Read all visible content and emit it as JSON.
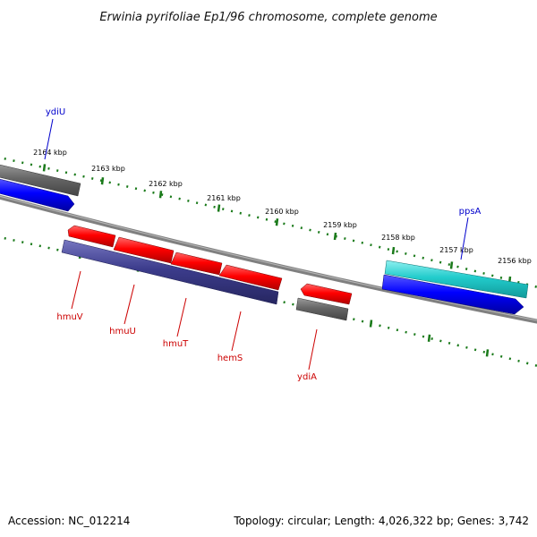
{
  "title": "Erwinia pyrifoliae Ep1/96 chromosome, complete genome",
  "footer": {
    "accession": "Accession: NC_012214",
    "summary": "Topology: circular; Length: 4,026,322 bp; Genes: 3,742"
  },
  "ticks": [
    {
      "label": "2164 kbp"
    },
    {
      "label": "2163 kbp"
    },
    {
      "label": "2162 kbp"
    },
    {
      "label": "2161 kbp"
    },
    {
      "label": "2160 kbp"
    },
    {
      "label": "2159 kbp"
    },
    {
      "label": "2158 kbp"
    },
    {
      "label": "2157 kbp"
    },
    {
      "label": "2156 kbp"
    }
  ],
  "genes": {
    "forward": [
      {
        "name": "ydiU",
        "color": "#0000cc"
      },
      {
        "name": "ppsA",
        "color": "#0000cc"
      }
    ],
    "reverse": [
      {
        "name": "hmuV",
        "color": "#cc0000"
      },
      {
        "name": "hmuU",
        "color": "#cc0000"
      },
      {
        "name": "hmuT",
        "color": "#cc0000"
      },
      {
        "name": "hemS",
        "color": "#cc0000"
      },
      {
        "name": "ydiA",
        "color": "#cc0000"
      }
    ]
  },
  "colors": {
    "backbone": "#808080",
    "tick": "#1a7a1a",
    "cds_forward": "#0000ff",
    "cds_reverse": "#ff0000",
    "cds_gray": "#666666",
    "cds_cyan": "#22cccc",
    "cds_purple": "#3c3c8c"
  }
}
